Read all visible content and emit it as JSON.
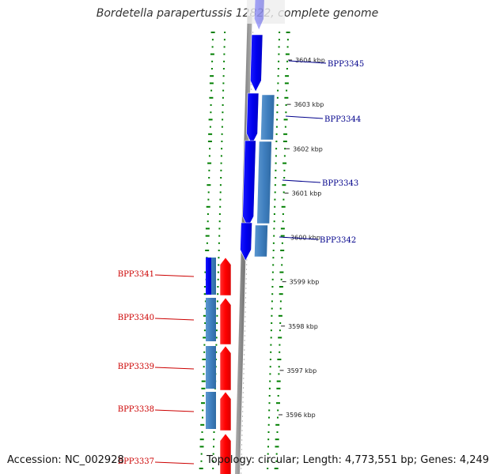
{
  "title": "Bordetella parapertussis 12822, complete genome",
  "footer": {
    "accession": "Accession: NC_002928",
    "topology": "Topology: circular; Length: 4,773,551 bp; Genes: 4,249"
  },
  "colors": {
    "forward_cds": "#0000ee",
    "forward_gene": "#3f7fbf",
    "reverse_cds": "#ff0000",
    "reverse_gene": "#3f7fbf",
    "backbone": "#888888",
    "gc_ticks": "#007f00",
    "label_forward": "#00008b",
    "label_reverse": "#cc0000"
  },
  "kbp_ticks": [
    {
      "label": "3604 kbp",
      "kbp": 3604
    },
    {
      "label": "3603 kbp",
      "kbp": 3603
    },
    {
      "label": "3602 kbp",
      "kbp": 3602
    },
    {
      "label": "3601 kbp",
      "kbp": 3601
    },
    {
      "label": "3600 kbp",
      "kbp": 3600
    },
    {
      "label": "3599 kbp",
      "kbp": 3599
    },
    {
      "label": "3598 kbp",
      "kbp": 3598
    },
    {
      "label": "3597 kbp",
      "kbp": 3597
    },
    {
      "label": "3596 kbp",
      "kbp": 3596
    }
  ],
  "forward_genes": [
    {
      "name": "BPP3345"
    },
    {
      "name": "BPP3344"
    },
    {
      "name": "BPP3343"
    },
    {
      "name": "BPP3342"
    }
  ],
  "reverse_genes": [
    {
      "name": "BPP3341"
    },
    {
      "name": "BPP3340"
    },
    {
      "name": "BPP3339"
    },
    {
      "name": "BPP3338"
    },
    {
      "name": "BPP3337"
    }
  ]
}
